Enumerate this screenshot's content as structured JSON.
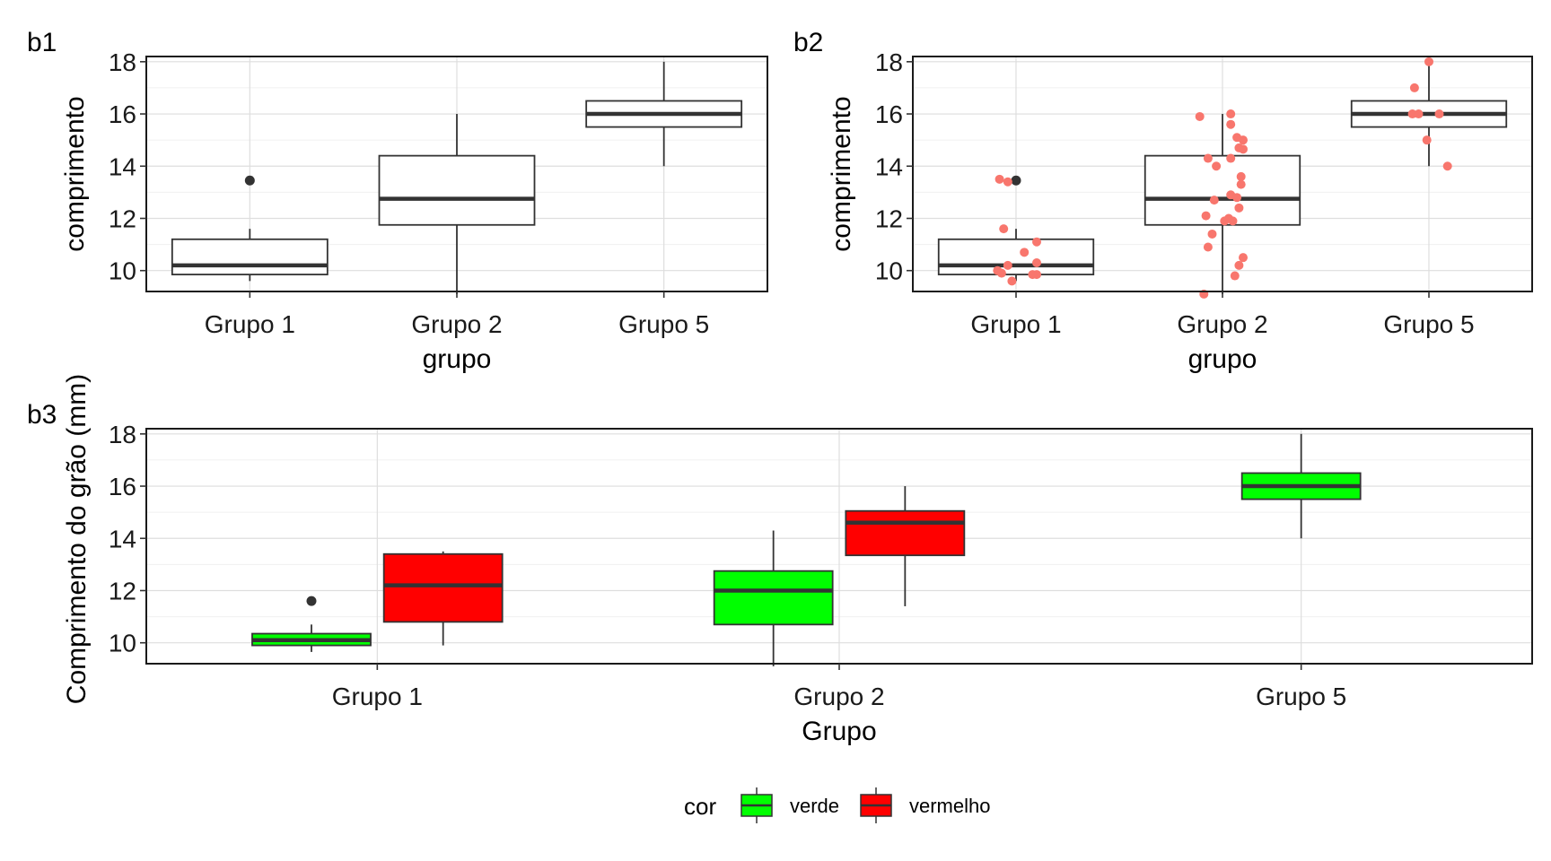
{
  "chart_data": [
    {
      "type": "box",
      "tag": "b1",
      "xlabel": "grupo",
      "ylabel": "comprimento",
      "categories": [
        "Grupo 1",
        "Grupo 2",
        "Grupo 5"
      ],
      "ylim": [
        9.2,
        18.2
      ],
      "yticks": [
        10,
        12,
        14,
        16,
        18
      ],
      "grid": true,
      "boxes": [
        {
          "category": "Grupo 1",
          "lower_whisker": 9.6,
          "q1": 9.85,
          "median": 10.2,
          "q3": 11.2,
          "upper_whisker": 11.6,
          "outliers": [
            13.45
          ]
        },
        {
          "category": "Grupo 2",
          "lower_whisker": 9.1,
          "q1": 11.75,
          "median": 12.75,
          "q3": 14.4,
          "upper_whisker": 16.0,
          "outliers": []
        },
        {
          "category": "Grupo 5",
          "lower_whisker": 14.0,
          "q1": 15.5,
          "median": 16.0,
          "q3": 16.5,
          "upper_whisker": 18.0,
          "outliers": []
        }
      ]
    },
    {
      "type": "box",
      "tag": "b2",
      "xlabel": "grupo",
      "ylabel": "comprimento",
      "categories": [
        "Grupo 1",
        "Grupo 2",
        "Grupo 5"
      ],
      "ylim": [
        9.2,
        18.2
      ],
      "yticks": [
        10,
        12,
        14,
        16,
        18
      ],
      "grid": true,
      "point_color": "#f8766d",
      "boxes": [
        {
          "category": "Grupo 1",
          "lower_whisker": 9.6,
          "q1": 9.85,
          "median": 10.2,
          "q3": 11.2,
          "upper_whisker": 11.6,
          "outliers": [
            13.45
          ]
        },
        {
          "category": "Grupo 2",
          "lower_whisker": 9.1,
          "q1": 11.75,
          "median": 12.75,
          "q3": 14.4,
          "upper_whisker": 16.0,
          "outliers": []
        },
        {
          "category": "Grupo 5",
          "lower_whisker": 14.0,
          "q1": 15.5,
          "median": 16.0,
          "q3": 16.5,
          "upper_whisker": 18.0,
          "outliers": []
        }
      ],
      "points": [
        {
          "category": "Grupo 1",
          "y": 13.5,
          "jitter": -0.08
        },
        {
          "category": "Grupo 1",
          "y": 13.4,
          "jitter": -0.04
        },
        {
          "category": "Grupo 1",
          "y": 11.6,
          "jitter": -0.06
        },
        {
          "category": "Grupo 1",
          "y": 11.1,
          "jitter": 0.1
        },
        {
          "category": "Grupo 1",
          "y": 10.7,
          "jitter": 0.04
        },
        {
          "category": "Grupo 1",
          "y": 10.3,
          "jitter": 0.1
        },
        {
          "category": "Grupo 1",
          "y": 10.2,
          "jitter": -0.04
        },
        {
          "category": "Grupo 1",
          "y": 10.0,
          "jitter": -0.09
        },
        {
          "category": "Grupo 1",
          "y": 9.9,
          "jitter": -0.07
        },
        {
          "category": "Grupo 1",
          "y": 9.85,
          "jitter": 0.08
        },
        {
          "category": "Grupo 1",
          "y": 9.85,
          "jitter": 0.1
        },
        {
          "category": "Grupo 1",
          "y": 9.6,
          "jitter": -0.02
        },
        {
          "category": "Grupo 2",
          "y": 16.0,
          "jitter": 0.04
        },
        {
          "category": "Grupo 2",
          "y": 15.9,
          "jitter": -0.11
        },
        {
          "category": "Grupo 2",
          "y": 15.6,
          "jitter": 0.04
        },
        {
          "category": "Grupo 2",
          "y": 15.1,
          "jitter": 0.07
        },
        {
          "category": "Grupo 2",
          "y": 15.0,
          "jitter": 0.1
        },
        {
          "category": "Grupo 2",
          "y": 14.7,
          "jitter": 0.08
        },
        {
          "category": "Grupo 2",
          "y": 14.65,
          "jitter": 0.1
        },
        {
          "category": "Grupo 2",
          "y": 14.3,
          "jitter": -0.07
        },
        {
          "category": "Grupo 2",
          "y": 14.3,
          "jitter": 0.04
        },
        {
          "category": "Grupo 2",
          "y": 14.0,
          "jitter": -0.03
        },
        {
          "category": "Grupo 2",
          "y": 13.6,
          "jitter": 0.09
        },
        {
          "category": "Grupo 2",
          "y": 13.3,
          "jitter": 0.09
        },
        {
          "category": "Grupo 2",
          "y": 12.9,
          "jitter": 0.04
        },
        {
          "category": "Grupo 2",
          "y": 12.8,
          "jitter": 0.07
        },
        {
          "category": "Grupo 2",
          "y": 12.7,
          "jitter": -0.04
        },
        {
          "category": "Grupo 2",
          "y": 12.4,
          "jitter": 0.08
        },
        {
          "category": "Grupo 2",
          "y": 12.1,
          "jitter": -0.08
        },
        {
          "category": "Grupo 2",
          "y": 12.0,
          "jitter": 0.03
        },
        {
          "category": "Grupo 2",
          "y": 11.9,
          "jitter": 0.05
        },
        {
          "category": "Grupo 2",
          "y": 11.9,
          "jitter": 0.01
        },
        {
          "category": "Grupo 2",
          "y": 11.4,
          "jitter": -0.05
        },
        {
          "category": "Grupo 2",
          "y": 10.9,
          "jitter": -0.07
        },
        {
          "category": "Grupo 2",
          "y": 10.5,
          "jitter": 0.1
        },
        {
          "category": "Grupo 2",
          "y": 10.2,
          "jitter": 0.08
        },
        {
          "category": "Grupo 2",
          "y": 9.8,
          "jitter": 0.06
        },
        {
          "category": "Grupo 2",
          "y": 9.1,
          "jitter": -0.09
        },
        {
          "category": "Grupo 5",
          "y": 18.0,
          "jitter": 0.0
        },
        {
          "category": "Grupo 5",
          "y": 17.0,
          "jitter": -0.07
        },
        {
          "category": "Grupo 5",
          "y": 16.0,
          "jitter": -0.08
        },
        {
          "category": "Grupo 5",
          "y": 16.0,
          "jitter": -0.05
        },
        {
          "category": "Grupo 5",
          "y": 16.0,
          "jitter": 0.05
        },
        {
          "category": "Grupo 5",
          "y": 15.0,
          "jitter": -0.01
        },
        {
          "category": "Grupo 5",
          "y": 14.0,
          "jitter": 0.09
        }
      ]
    },
    {
      "type": "box",
      "tag": "b3",
      "xlabel": "Grupo",
      "ylabel": "Comprimento do grão (mm)",
      "categories": [
        "Grupo 1",
        "Grupo 2",
        "Grupo 5"
      ],
      "ylim": [
        9.2,
        18.2
      ],
      "yticks": [
        10,
        12,
        14,
        16,
        18
      ],
      "grid": true,
      "legend": {
        "title": "cor",
        "position": "bottom",
        "entries": [
          {
            "label": "verde",
            "color": "#00ff00"
          },
          {
            "label": "vermelho",
            "color": "#ff0000"
          }
        ]
      },
      "boxes": [
        {
          "category": "Grupo 1",
          "series": "verde",
          "lower_whisker": 9.65,
          "q1": 9.9,
          "median": 10.1,
          "q3": 10.35,
          "upper_whisker": 10.7,
          "outliers": [
            11.6
          ]
        },
        {
          "category": "Grupo 1",
          "series": "vermelho",
          "lower_whisker": 9.9,
          "q1": 10.8,
          "median": 12.2,
          "q3": 13.4,
          "upper_whisker": 13.5,
          "outliers": []
        },
        {
          "category": "Grupo 2",
          "series": "verde",
          "lower_whisker": 9.1,
          "q1": 10.7,
          "median": 12.0,
          "q3": 12.75,
          "upper_whisker": 14.3,
          "outliers": []
        },
        {
          "category": "Grupo 2",
          "series": "vermelho",
          "lower_whisker": 11.4,
          "q1": 13.35,
          "median": 14.6,
          "q3": 15.05,
          "upper_whisker": 16.0,
          "outliers": []
        },
        {
          "category": "Grupo 5",
          "series": "verde",
          "lower_whisker": 14.0,
          "q1": 15.5,
          "median": 16.0,
          "q3": 16.5,
          "upper_whisker": 18.0,
          "outliers": []
        }
      ]
    }
  ]
}
